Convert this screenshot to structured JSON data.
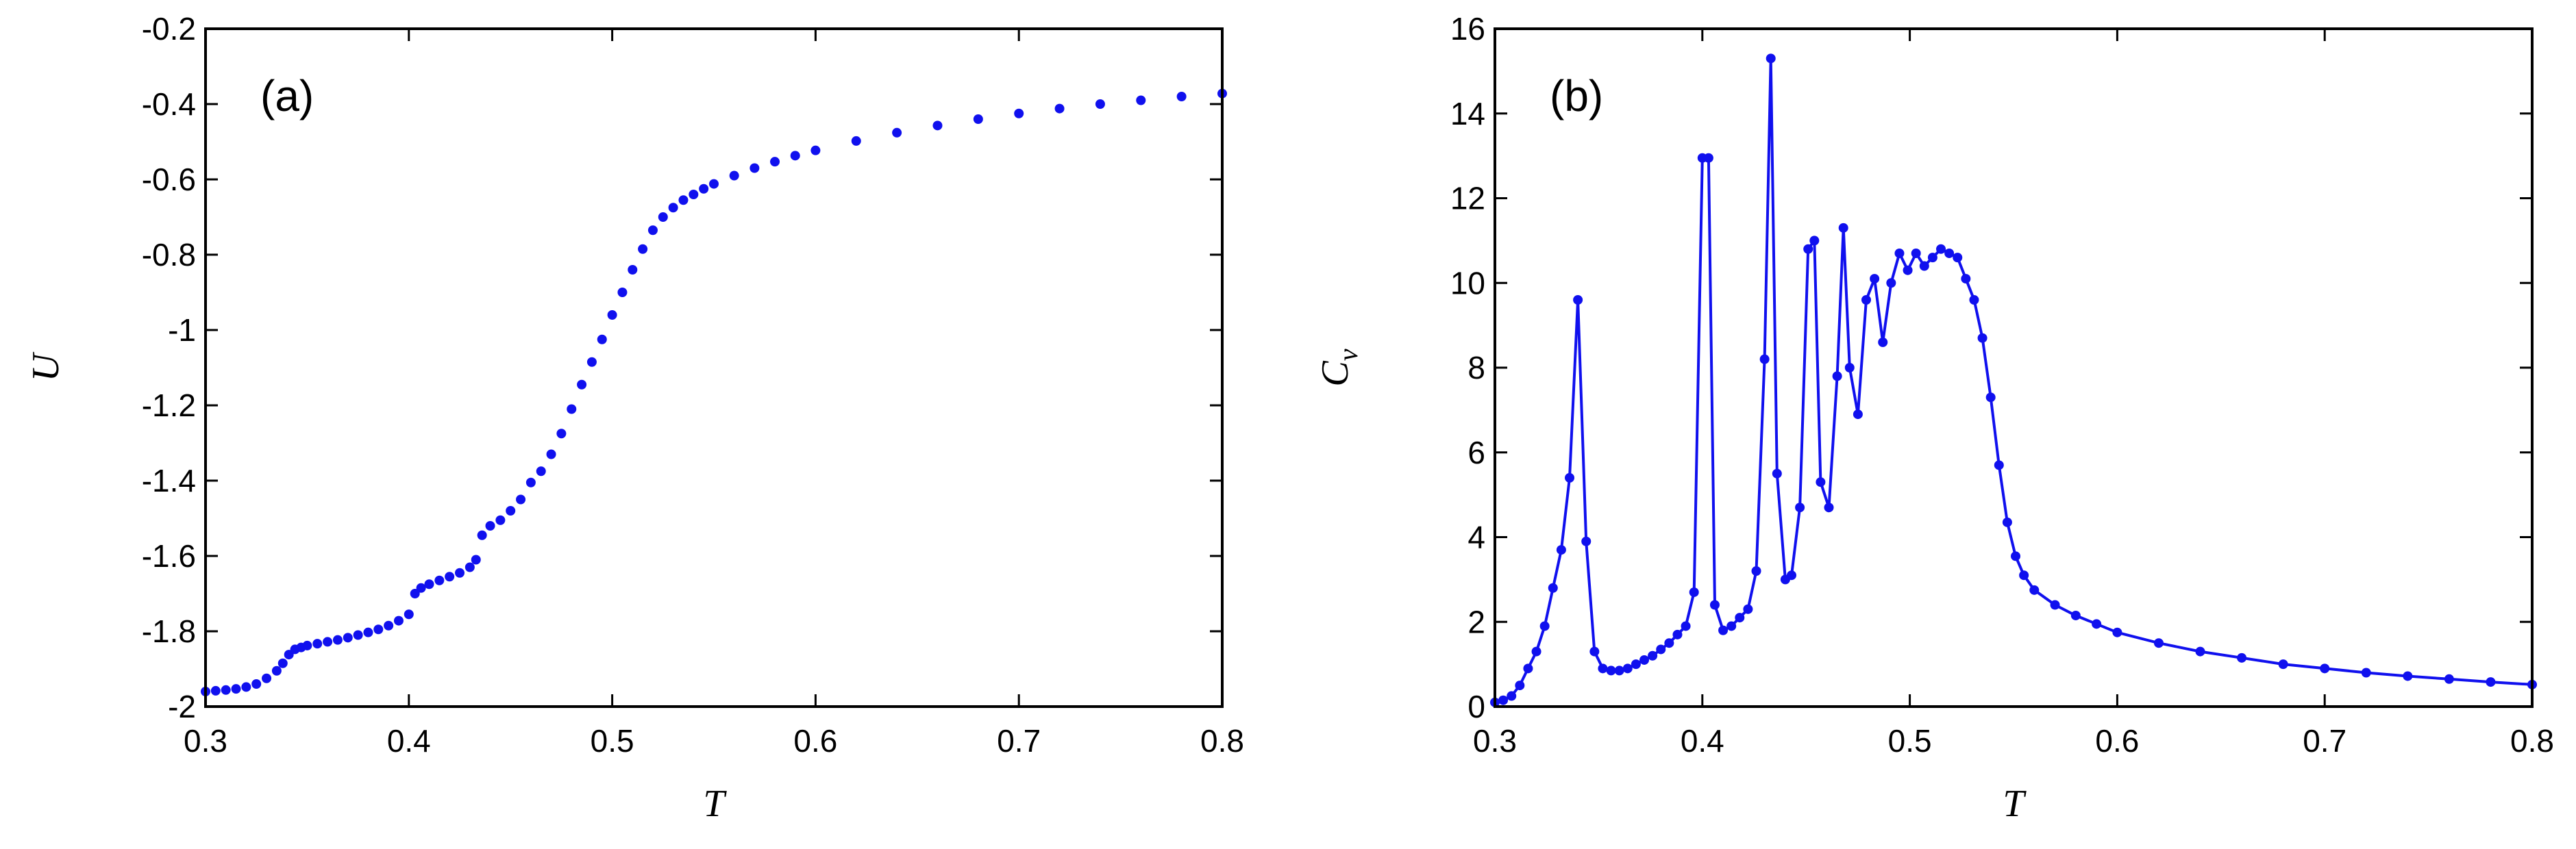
{
  "colors": {
    "series": "#1010ee",
    "axis": "#000000",
    "background": "#ffffff"
  },
  "chart_data": [
    {
      "type": "scatter",
      "panel_label": "(a)",
      "xlabel": "T",
      "ylabel": "U",
      "xlim": [
        0.3,
        0.8
      ],
      "ylim": [
        -2,
        -0.2
      ],
      "xticks": [
        "0.3",
        "0.4",
        "0.5",
        "0.6",
        "0.7",
        "0.8"
      ],
      "yticks": [
        "-2",
        "-1.8",
        "-1.6",
        "-1.4",
        "-1.2",
        "-1",
        "-0.8",
        "-0.6",
        "-0.4",
        "-0.2"
      ],
      "grid": false,
      "markers": true,
      "line": false,
      "series": [
        {
          "x": [
            0.3,
            0.305,
            0.31,
            0.315,
            0.32,
            0.325,
            0.33,
            0.335,
            0.338,
            0.341,
            0.344,
            0.347,
            0.35,
            0.355,
            0.36,
            0.365,
            0.37,
            0.375,
            0.38,
            0.385,
            0.39,
            0.395,
            0.4,
            0.403,
            0.406,
            0.41,
            0.415,
            0.42,
            0.425,
            0.43,
            0.433,
            0.436,
            0.44,
            0.445,
            0.45,
            0.455,
            0.46,
            0.465,
            0.47,
            0.475,
            0.48,
            0.485,
            0.49,
            0.495,
            0.5,
            0.505,
            0.51,
            0.515,
            0.52,
            0.525,
            0.53,
            0.535,
            0.54,
            0.545,
            0.55,
            0.56,
            0.57,
            0.58,
            0.59,
            0.6,
            0.62,
            0.64,
            0.66,
            0.68,
            0.7,
            0.72,
            0.74,
            0.76,
            0.78,
            0.8
          ],
          "y": [
            -1.96,
            -1.958,
            -1.956,
            -1.953,
            -1.948,
            -1.94,
            -1.925,
            -1.905,
            -1.885,
            -1.862,
            -1.848,
            -1.843,
            -1.838,
            -1.833,
            -1.828,
            -1.823,
            -1.817,
            -1.81,
            -1.803,
            -1.795,
            -1.785,
            -1.772,
            -1.755,
            -1.7,
            -1.685,
            -1.675,
            -1.665,
            -1.655,
            -1.645,
            -1.63,
            -1.61,
            -1.545,
            -1.52,
            -1.505,
            -1.48,
            -1.45,
            -1.405,
            -1.375,
            -1.33,
            -1.275,
            -1.21,
            -1.145,
            -1.085,
            -1.025,
            -0.96,
            -0.9,
            -0.84,
            -0.785,
            -0.735,
            -0.7,
            -0.675,
            -0.655,
            -0.64,
            -0.625,
            -0.612,
            -0.59,
            -0.57,
            -0.553,
            -0.537,
            -0.523,
            -0.498,
            -0.476,
            -0.457,
            -0.44,
            -0.425,
            -0.412,
            -0.4,
            -0.39,
            -0.38,
            -0.372
          ]
        }
      ]
    },
    {
      "type": "line",
      "panel_label": "(b)",
      "xlabel": "T",
      "ylabel": "C",
      "ylabel_subscript": "v",
      "xlim": [
        0.3,
        0.8
      ],
      "ylim": [
        0,
        16
      ],
      "xticks": [
        "0.3",
        "0.4",
        "0.5",
        "0.6",
        "0.7",
        "0.8"
      ],
      "yticks": [
        "0",
        "2",
        "4",
        "6",
        "8",
        "10",
        "12",
        "14",
        "16"
      ],
      "grid": false,
      "markers": true,
      "line": true,
      "series": [
        {
          "x": [
            0.3,
            0.304,
            0.308,
            0.312,
            0.316,
            0.32,
            0.324,
            0.328,
            0.332,
            0.336,
            0.34,
            0.344,
            0.348,
            0.352,
            0.356,
            0.36,
            0.364,
            0.368,
            0.372,
            0.376,
            0.38,
            0.384,
            0.388,
            0.392,
            0.396,
            0.4,
            0.403,
            0.406,
            0.41,
            0.414,
            0.418,
            0.422,
            0.426,
            0.43,
            0.433,
            0.436,
            0.44,
            0.443,
            0.447,
            0.451,
            0.454,
            0.457,
            0.461,
            0.465,
            0.468,
            0.471,
            0.475,
            0.479,
            0.483,
            0.487,
            0.491,
            0.495,
            0.499,
            0.503,
            0.507,
            0.511,
            0.515,
            0.519,
            0.523,
            0.527,
            0.531,
            0.535,
            0.539,
            0.543,
            0.547,
            0.551,
            0.555,
            0.56,
            0.57,
            0.58,
            0.59,
            0.6,
            0.62,
            0.64,
            0.66,
            0.68,
            0.7,
            0.72,
            0.74,
            0.76,
            0.78,
            0.8
          ],
          "y": [
            0.1,
            0.15,
            0.25,
            0.5,
            0.9,
            1.3,
            1.9,
            2.8,
            3.7,
            5.4,
            9.6,
            3.9,
            1.3,
            0.9,
            0.85,
            0.85,
            0.9,
            1.0,
            1.1,
            1.2,
            1.35,
            1.5,
            1.7,
            1.9,
            2.7,
            12.95,
            12.95,
            2.4,
            1.8,
            1.9,
            2.1,
            2.3,
            3.2,
            8.2,
            15.3,
            5.5,
            3.0,
            3.1,
            4.7,
            10.8,
            11.0,
            5.3,
            4.7,
            7.8,
            11.3,
            8.0,
            6.9,
            9.6,
            10.1,
            8.6,
            10.0,
            10.7,
            10.3,
            10.7,
            10.4,
            10.6,
            10.8,
            10.7,
            10.6,
            10.1,
            9.6,
            8.7,
            7.3,
            5.7,
            4.35,
            3.55,
            3.1,
            2.75,
            2.4,
            2.15,
            1.95,
            1.75,
            1.5,
            1.3,
            1.15,
            1.0,
            0.9,
            0.8,
            0.72,
            0.65,
            0.58,
            0.52
          ]
        }
      ]
    }
  ]
}
